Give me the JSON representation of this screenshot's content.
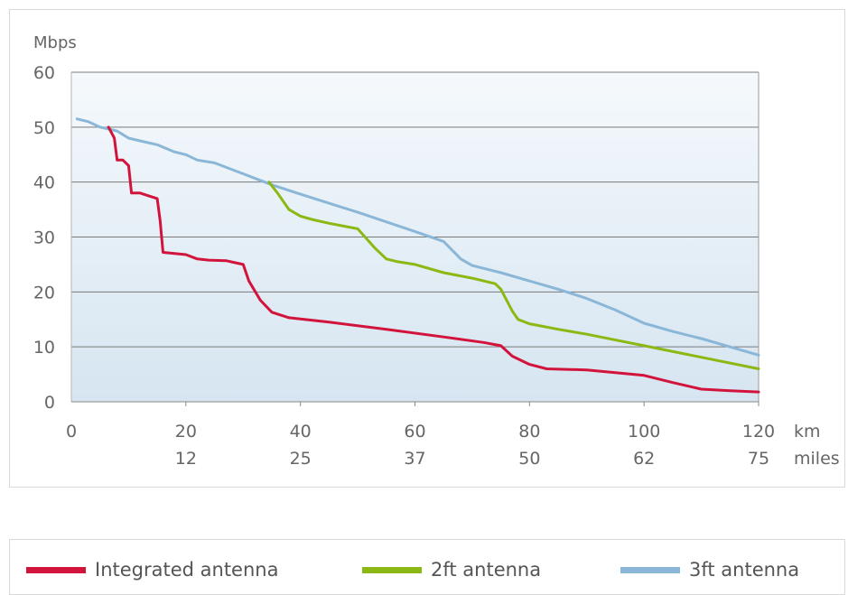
{
  "chart_data": {
    "type": "line",
    "ylabel": "Mbps",
    "ylim": [
      0,
      60
    ],
    "yticks": [
      0,
      10,
      20,
      30,
      40,
      50,
      60
    ],
    "xlim": [
      0,
      120
    ],
    "xticks_km": [
      {
        "value": 0,
        "label": "0"
      },
      {
        "value": 20,
        "label": "20"
      },
      {
        "value": 40,
        "label": "40"
      },
      {
        "value": 60,
        "label": "60"
      },
      {
        "value": 80,
        "label": "80"
      },
      {
        "value": 100,
        "label": "100"
      },
      {
        "value": 120,
        "label": "120"
      }
    ],
    "xticks_miles": [
      {
        "value": 20,
        "label": "12"
      },
      {
        "value": 40,
        "label": "25"
      },
      {
        "value": 60,
        "label": "37"
      },
      {
        "value": 80,
        "label": "50"
      },
      {
        "value": 100,
        "label": "62"
      },
      {
        "value": 120,
        "label": "75"
      }
    ],
    "x_unit_km": "km",
    "x_unit_miles": "miles",
    "grid": true,
    "legend_position": "bottom",
    "series": [
      {
        "name": "Integrated antenna",
        "color": "#d2143c",
        "points": [
          [
            6.5,
            50
          ],
          [
            7.5,
            48
          ],
          [
            8,
            44
          ],
          [
            9,
            44
          ],
          [
            10,
            43
          ],
          [
            10.5,
            38
          ],
          [
            12,
            38
          ],
          [
            13.5,
            37.5
          ],
          [
            15,
            37
          ],
          [
            15.5,
            33
          ],
          [
            16,
            27.2
          ],
          [
            18,
            27
          ],
          [
            20,
            26.8
          ],
          [
            22,
            26
          ],
          [
            24,
            25.8
          ],
          [
            27,
            25.7
          ],
          [
            30,
            25
          ],
          [
            31,
            22
          ],
          [
            33,
            18.5
          ],
          [
            35,
            16.3
          ],
          [
            38,
            15.3
          ],
          [
            45,
            14.5
          ],
          [
            55,
            13.2
          ],
          [
            65,
            11.8
          ],
          [
            72,
            10.8
          ],
          [
            75,
            10.2
          ],
          [
            77,
            8.3
          ],
          [
            80,
            6.8
          ],
          [
            83,
            6
          ],
          [
            90,
            5.8
          ],
          [
            100,
            4.8
          ],
          [
            105,
            3.5
          ],
          [
            110,
            2.3
          ],
          [
            115,
            2
          ],
          [
            120,
            1.8
          ]
        ]
      },
      {
        "name": "2ft antenna",
        "color": "#8cb814",
        "points": [
          [
            34.5,
            40
          ],
          [
            36,
            38
          ],
          [
            38,
            35
          ],
          [
            40,
            33.8
          ],
          [
            42,
            33.2
          ],
          [
            45,
            32.5
          ],
          [
            50,
            31.5
          ],
          [
            53,
            28
          ],
          [
            55,
            26
          ],
          [
            57,
            25.5
          ],
          [
            60,
            25
          ],
          [
            65,
            23.5
          ],
          [
            70,
            22.5
          ],
          [
            74,
            21.5
          ],
          [
            75,
            20.5
          ],
          [
            77,
            16.5
          ],
          [
            78,
            15
          ],
          [
            80,
            14.2
          ],
          [
            85,
            13.2
          ],
          [
            90,
            12.3
          ],
          [
            100,
            10.2
          ],
          [
            110,
            8.1
          ],
          [
            120,
            6
          ]
        ]
      },
      {
        "name": "3ft antenna",
        "color": "#8ab7d8",
        "points": [
          [
            1,
            51.5
          ],
          [
            3,
            51
          ],
          [
            5,
            50
          ],
          [
            8,
            49.3
          ],
          [
            10,
            48
          ],
          [
            12,
            47.5
          ],
          [
            15,
            46.8
          ],
          [
            18,
            45.5
          ],
          [
            20,
            45
          ],
          [
            22,
            44
          ],
          [
            25,
            43.5
          ],
          [
            30,
            41.5
          ],
          [
            35,
            39.5
          ],
          [
            40,
            37.8
          ],
          [
            50,
            34.5
          ],
          [
            60,
            31
          ],
          [
            65,
            29.2
          ],
          [
            68,
            26
          ],
          [
            70,
            24.8
          ],
          [
            75,
            23.5
          ],
          [
            80,
            22
          ],
          [
            85,
            20.5
          ],
          [
            90,
            18.8
          ],
          [
            95,
            16.7
          ],
          [
            100,
            14.3
          ],
          [
            105,
            12.8
          ],
          [
            110,
            11.5
          ],
          [
            120,
            8.5
          ]
        ]
      }
    ]
  }
}
